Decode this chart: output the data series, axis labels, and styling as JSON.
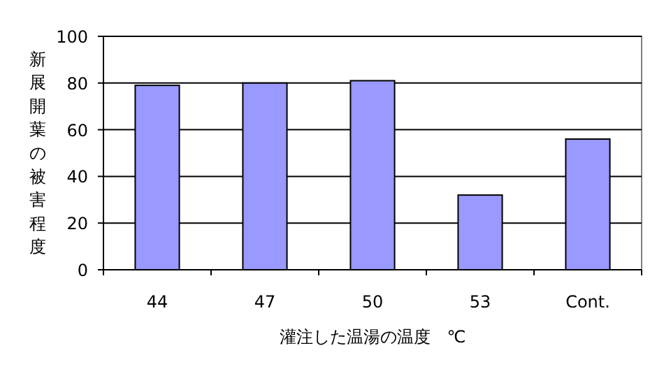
{
  "chart_data": {
    "type": "bar",
    "xlabel": "灌注した温湯の温度　℃",
    "ylabel": "新展開葉の被害程度",
    "categories": [
      "44",
      "47",
      "50",
      "53",
      "Cont."
    ],
    "values": [
      79,
      80,
      81,
      32,
      56
    ],
    "color": "#9999ff",
    "ylim": [
      0,
      100
    ],
    "yticks": [
      0,
      20,
      40,
      60,
      80,
      100
    ],
    "grid": "y"
  }
}
